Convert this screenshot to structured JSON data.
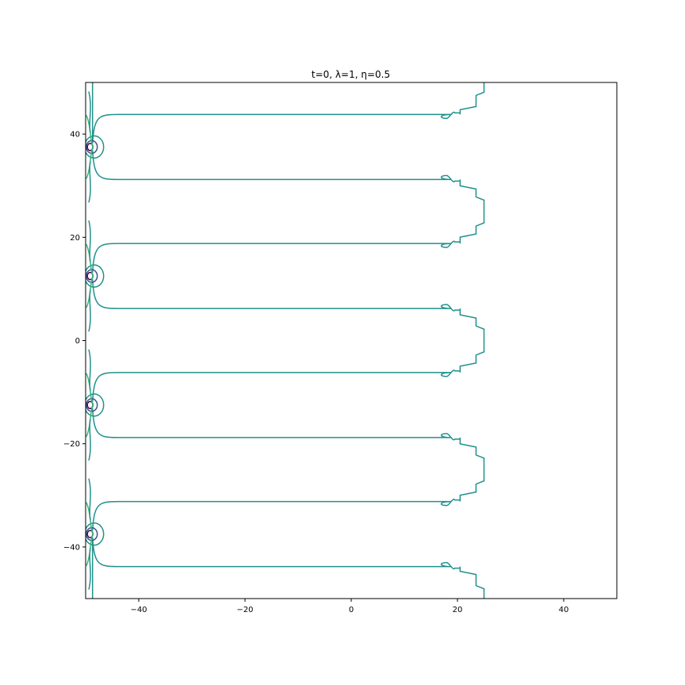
{
  "chart_data": {
    "type": "contour",
    "title": "t=0, λ=1, η=0.5",
    "xlabel": "",
    "ylabel": "",
    "xlim": [
      -50,
      50
    ],
    "ylim": [
      -50,
      50
    ],
    "grid": false,
    "xticks": [
      {
        "value": -40,
        "label": "−40"
      },
      {
        "value": -20,
        "label": "−20"
      },
      {
        "value": 0,
        "label": "0"
      },
      {
        "value": 20,
        "label": "20"
      },
      {
        "value": 40,
        "label": "40"
      }
    ],
    "yticks": [
      {
        "value": 40,
        "label": "40"
      },
      {
        "value": 20,
        "label": "20"
      },
      {
        "value": 0,
        "label": "0"
      },
      {
        "value": -20,
        "label": "−20"
      },
      {
        "value": -40,
        "label": "−40"
      }
    ],
    "colors": {
      "level_main": "#21918c",
      "level_green": "#35b779",
      "level_blue": "#3b528b",
      "level_purple": "#440154"
    },
    "sources": [
      {
        "x": -49,
        "y": 37.5
      },
      {
        "x": -49,
        "y": 12.5
      },
      {
        "x": -49,
        "y": -12.5
      },
      {
        "x": -49,
        "y": -37.5
      }
    ],
    "horizontal_lines": [
      {
        "y": 43.8,
        "x_start": -49,
        "x_end": 20
      },
      {
        "y": 31.2,
        "x_start": -49,
        "x_end": 20
      },
      {
        "y": 18.8,
        "x_start": -49,
        "x_end": 20
      },
      {
        "y": 6.2,
        "x_start": -49,
        "x_end": 20
      },
      {
        "y": -6.2,
        "x_start": -49,
        "x_end": 20
      },
      {
        "y": -18.8,
        "x_start": -49,
        "x_end": 20
      },
      {
        "y": -31.2,
        "x_start": -49,
        "x_end": 20
      },
      {
        "y": -43.8,
        "x_start": -49,
        "x_end": 20
      }
    ]
  }
}
